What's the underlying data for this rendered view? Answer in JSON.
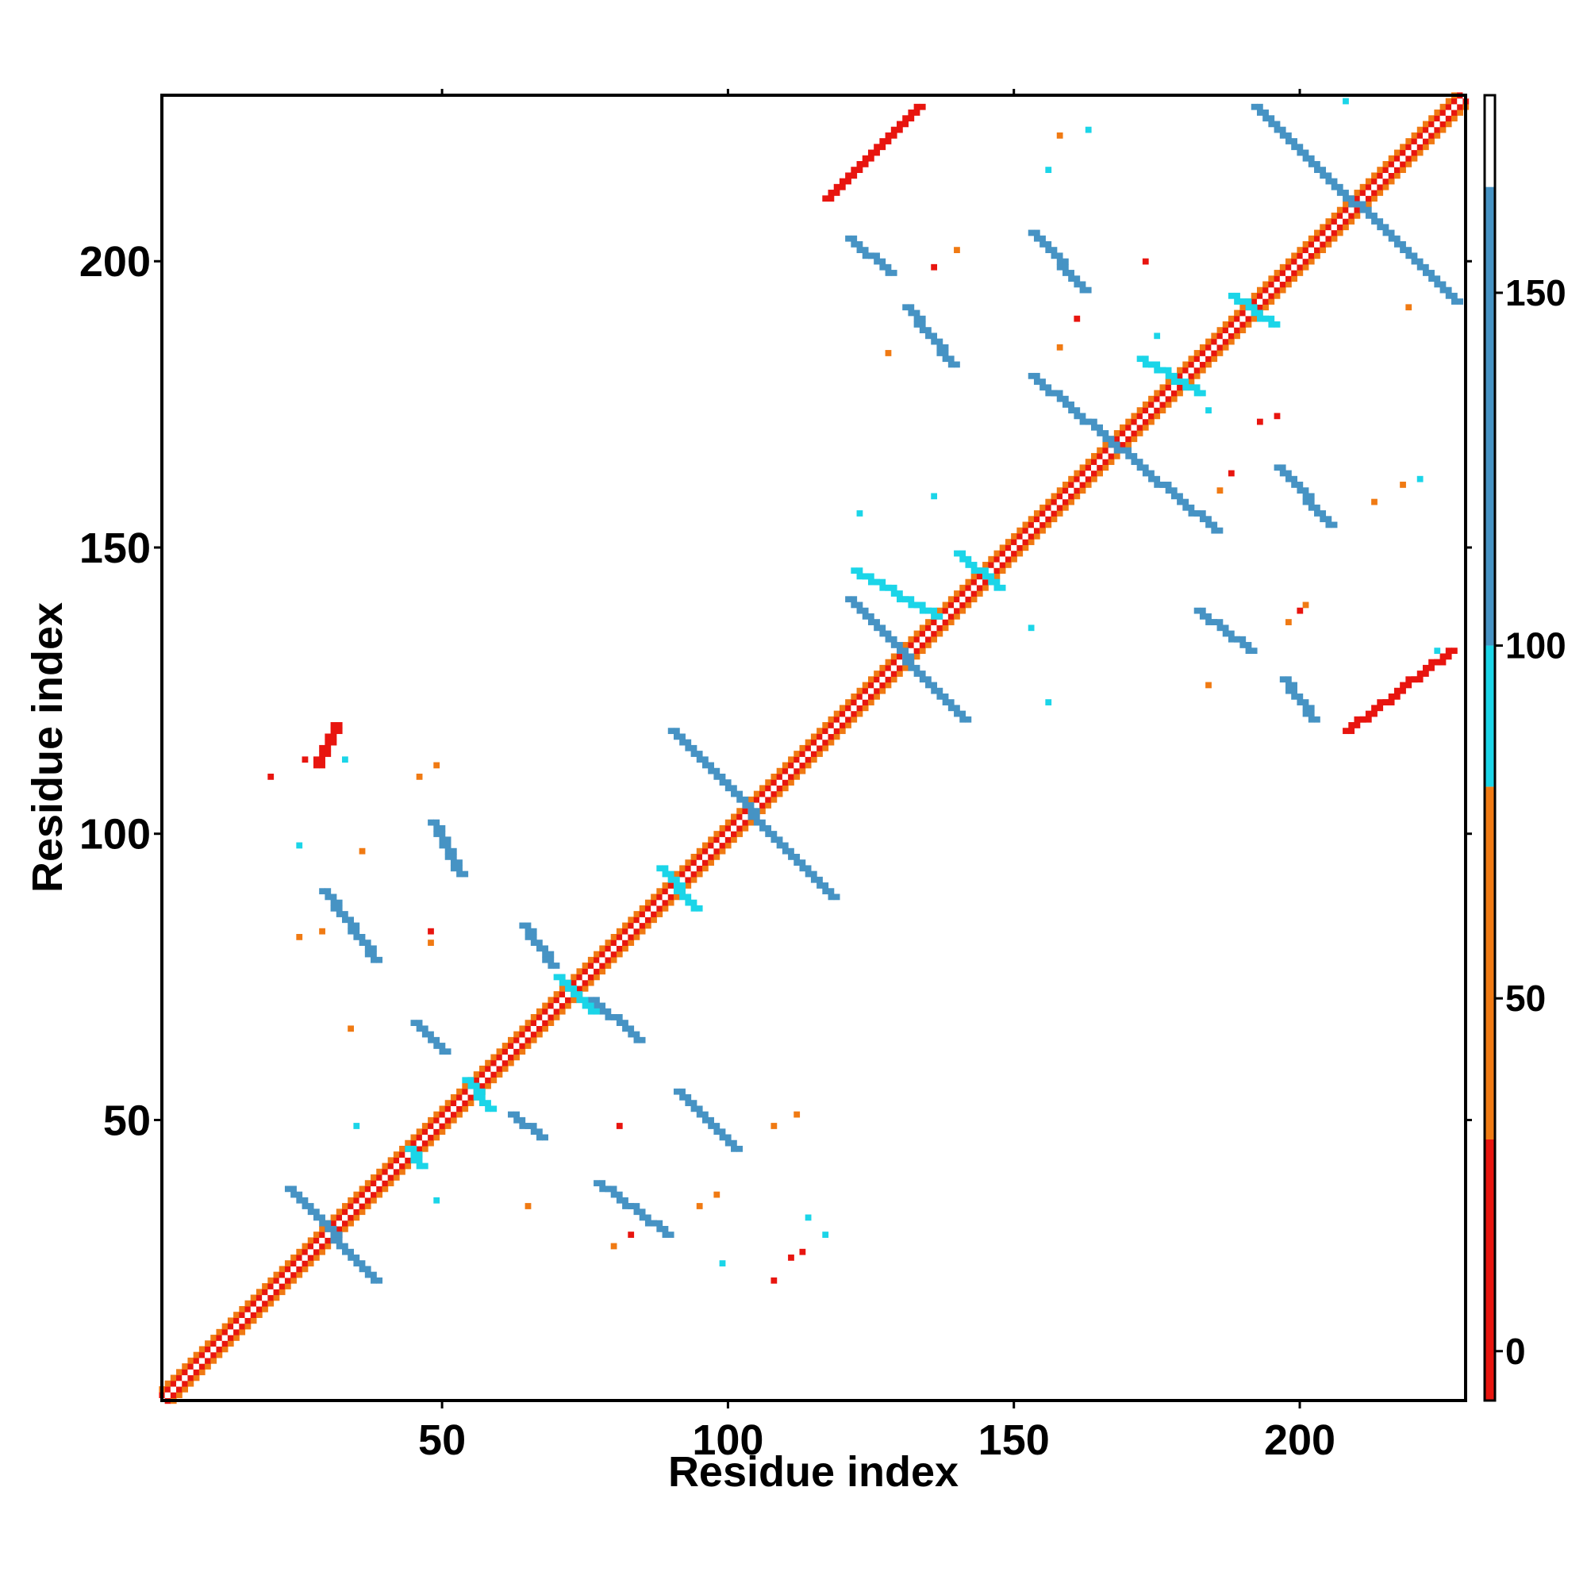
{
  "chart_data": {
    "type": "heatmap",
    "title": "",
    "xlabel": "Residue index",
    "ylabel": "Residue index",
    "xlim": [
      1,
      229
    ],
    "ylim": [
      1,
      229
    ],
    "x_ticks": [
      50,
      100,
      150,
      200
    ],
    "y_ticks": [
      50,
      100,
      150,
      200
    ],
    "colorbar": {
      "range": [
        -7,
        178
      ],
      "ticks": [
        0,
        50,
        100,
        150
      ],
      "bands": [
        {
          "from": -7,
          "to": 30,
          "color": "#e8150f"
        },
        {
          "from": 30,
          "to": 80,
          "color": "#f07a13"
        },
        {
          "from": 80,
          "to": 100,
          "color": "#1bd5e8"
        },
        {
          "from": 100,
          "to": 165,
          "color": "#4693c4"
        },
        {
          "from": 165,
          "to": 178,
          "color": "#ffffff"
        }
      ]
    },
    "colors": {
      "very_low": "#e8150f",
      "low": "#f07a13",
      "mid": "#1bd5e8",
      "high": "#4693c4",
      "background": "#ffffff"
    },
    "diagonal": {
      "from": 1,
      "to": 229
    },
    "segments": [
      {
        "x": [
          23,
          38
        ],
        "y": [
          38,
          22
        ],
        "value": 135
      },
      {
        "x": [
          48,
          53
        ],
        "y": [
          102,
          93
        ],
        "value": 135
      },
      {
        "x": [
          29,
          38
        ],
        "y": [
          90,
          78
        ],
        "value": 130
      },
      {
        "x": [
          64,
          69
        ],
        "y": [
          84,
          77
        ],
        "value": 135
      },
      {
        "x": [
          76,
          84
        ],
        "y": [
          71,
          64
        ],
        "value": 135
      },
      {
        "x": [
          45,
          50
        ],
        "y": [
          67,
          62
        ],
        "value": 135
      },
      {
        "x": [
          91,
          101
        ],
        "y": [
          55,
          45
        ],
        "value": 135
      },
      {
        "x": [
          62,
          67
        ],
        "y": [
          51,
          47
        ],
        "value": 135
      },
      {
        "x": [
          77,
          89
        ],
        "y": [
          39,
          30
        ],
        "value": 130
      },
      {
        "x": [
          90,
          118
        ],
        "y": [
          118,
          89
        ],
        "value": 135
      },
      {
        "x": [
          121,
          141
        ],
        "y": [
          141,
          120
        ],
        "value": 135
      },
      {
        "x": [
          153,
          185
        ],
        "y": [
          180,
          153
        ],
        "value": 135
      },
      {
        "x": [
          153,
          162
        ],
        "y": [
          205,
          195
        ],
        "value": 135
      },
      {
        "x": [
          131,
          139
        ],
        "y": [
          192,
          182
        ],
        "value": 130
      },
      {
        "x": [
          121,
          128
        ],
        "y": [
          204,
          198
        ],
        "value": 100
      },
      {
        "x": [
          192,
          227
        ],
        "y": [
          227,
          193
        ],
        "value": 135
      },
      {
        "x": [
          196,
          205
        ],
        "y": [
          164,
          154
        ],
        "value": 135
      },
      {
        "x": [
          182,
          191
        ],
        "y": [
          139,
          132
        ],
        "value": 130
      },
      {
        "x": [
          197,
          202
        ],
        "y": [
          127,
          120
        ],
        "value": 100
      },
      {
        "x": [
          208,
          226
        ],
        "y": [
          118,
          132
        ],
        "value": 5
      },
      {
        "x": [
          117,
          133
        ],
        "y": [
          211,
          227
        ],
        "value": 5
      },
      {
        "x": [
          28,
          31
        ],
        "y": [
          112,
          119
        ],
        "value": 5
      },
      {
        "x": [
          122,
          136
        ],
        "y": [
          146,
          138
        ],
        "value": 90
      },
      {
        "x": [
          172,
          182
        ],
        "y": [
          183,
          177
        ],
        "value": 90
      },
      {
        "x": [
          188,
          195
        ],
        "y": [
          194,
          189
        ],
        "value": 90
      },
      {
        "x": [
          88,
          94
        ],
        "y": [
          94,
          87
        ],
        "value": 90
      },
      {
        "x": [
          54,
          58
        ],
        "y": [
          57,
          52
        ],
        "value": 90
      },
      {
        "x": [
          44,
          46
        ],
        "y": [
          45,
          42
        ],
        "value": 90
      },
      {
        "x": [
          70,
          76
        ],
        "y": [
          75,
          69
        ],
        "value": 90
      },
      {
        "x": [
          140,
          147
        ],
        "y": [
          149,
          143
        ],
        "value": 90
      }
    ],
    "points": [
      {
        "x": 20,
        "y": 110,
        "value": 5
      },
      {
        "x": 26,
        "y": 113,
        "value": 5
      },
      {
        "x": 25,
        "y": 82,
        "value": 55
      },
      {
        "x": 29,
        "y": 83,
        "value": 55
      },
      {
        "x": 34,
        "y": 66,
        "value": 55
      },
      {
        "x": 46,
        "y": 110,
        "value": 55
      },
      {
        "x": 49,
        "y": 112,
        "value": 55
      },
      {
        "x": 36,
        "y": 97,
        "value": 55
      },
      {
        "x": 48,
        "y": 83,
        "value": 5
      },
      {
        "x": 48,
        "y": 81,
        "value": 55
      },
      {
        "x": 25,
        "y": 98,
        "value": 95
      },
      {
        "x": 33,
        "y": 113,
        "value": 95
      },
      {
        "x": 35,
        "y": 49,
        "value": 95
      },
      {
        "x": 49,
        "y": 36,
        "value": 95
      },
      {
        "x": 65,
        "y": 35,
        "value": 55
      },
      {
        "x": 81,
        "y": 49,
        "value": 5
      },
      {
        "x": 80,
        "y": 28,
        "value": 55
      },
      {
        "x": 83,
        "y": 30,
        "value": 5
      },
      {
        "x": 95,
        "y": 35,
        "value": 55
      },
      {
        "x": 98,
        "y": 37,
        "value": 55
      },
      {
        "x": 99,
        "y": 25,
        "value": 95
      },
      {
        "x": 108,
        "y": 22,
        "value": 5
      },
      {
        "x": 111,
        "y": 26,
        "value": 5
      },
      {
        "x": 113,
        "y": 27,
        "value": 5
      },
      {
        "x": 114,
        "y": 33,
        "value": 95
      },
      {
        "x": 117,
        "y": 30,
        "value": 95
      },
      {
        "x": 108,
        "y": 49,
        "value": 55
      },
      {
        "x": 112,
        "y": 51,
        "value": 55
      },
      {
        "x": 123,
        "y": 156,
        "value": 95
      },
      {
        "x": 136,
        "y": 159,
        "value": 95
      },
      {
        "x": 156,
        "y": 123,
        "value": 95
      },
      {
        "x": 153,
        "y": 136,
        "value": 95
      },
      {
        "x": 128,
        "y": 184,
        "value": 55
      },
      {
        "x": 136,
        "y": 199,
        "value": 5
      },
      {
        "x": 140,
        "y": 202,
        "value": 55
      },
      {
        "x": 158,
        "y": 185,
        "value": 55
      },
      {
        "x": 161,
        "y": 190,
        "value": 5
      },
      {
        "x": 158,
        "y": 222,
        "value": 55
      },
      {
        "x": 163,
        "y": 223,
        "value": 95
      },
      {
        "x": 156,
        "y": 216,
        "value": 95
      },
      {
        "x": 173,
        "y": 200,
        "value": 5
      },
      {
        "x": 175,
        "y": 187,
        "value": 95
      },
      {
        "x": 184,
        "y": 174,
        "value": 95
      },
      {
        "x": 186,
        "y": 160,
        "value": 55
      },
      {
        "x": 188,
        "y": 163,
        "value": 5
      },
      {
        "x": 193,
        "y": 172,
        "value": 5
      },
      {
        "x": 196,
        "y": 173,
        "value": 5
      },
      {
        "x": 198,
        "y": 137,
        "value": 55
      },
      {
        "x": 200,
        "y": 139,
        "value": 5
      },
      {
        "x": 221,
        "y": 162,
        "value": 95
      },
      {
        "x": 213,
        "y": 158,
        "value": 55
      },
      {
        "x": 218,
        "y": 161,
        "value": 55
      },
      {
        "x": 184,
        "y": 126,
        "value": 55
      },
      {
        "x": 224,
        "y": 132,
        "value": 95
      },
      {
        "x": 208,
        "y": 228,
        "value": 95
      },
      {
        "x": 219,
        "y": 192,
        "value": 55
      },
      {
        "x": 201,
        "y": 140,
        "value": 55
      }
    ]
  }
}
